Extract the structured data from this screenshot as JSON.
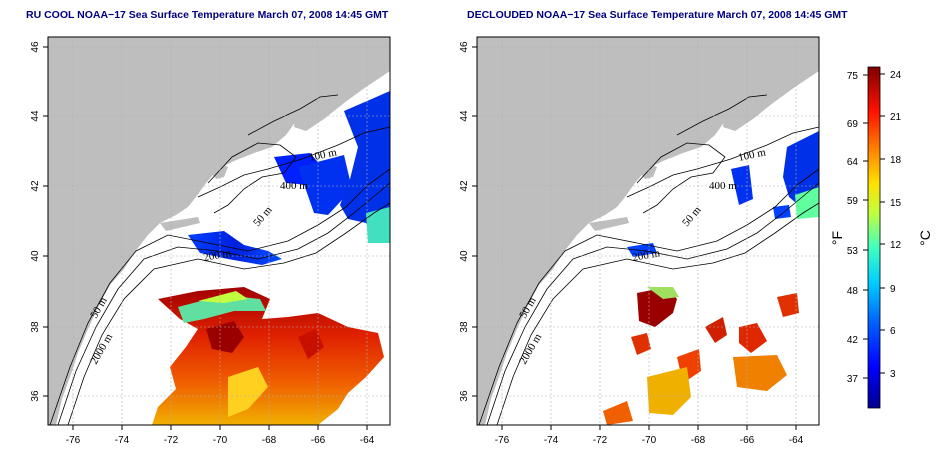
{
  "colors": {
    "land": "#BEBEBE",
    "ocean": "#FFFFFF",
    "contour": "#000000",
    "grid": "#B0B0B0",
    "title": "#000080",
    "colormap": [
      "#00008F",
      "#0000FF",
      "#0080FF",
      "#00FFFF",
      "#80FF80",
      "#FFFF00",
      "#FF8000",
      "#FF0000",
      "#800000"
    ]
  },
  "panels": [
    {
      "title": "RU COOL NOAA−17 Sea Surface Temperature March 07, 2008 14:45 GMT",
      "x_ticks": [
        "-76",
        "-74",
        "-72",
        "-70",
        "-68",
        "-66",
        "-64"
      ],
      "y_ticks": [
        "36",
        "38",
        "40",
        "42",
        "44",
        "46"
      ],
      "contour_labels": [
        "100 m",
        "400 m",
        "50 m",
        "200 m",
        "50 m",
        "2000 m"
      ]
    },
    {
      "title": "DECLOUDED NOAA−17 Sea Surface Temperature March 07, 2008 14:45 GMT",
      "x_ticks": [
        "-76",
        "-74",
        "-72",
        "-70",
        "-68",
        "-66",
        "-64"
      ],
      "y_ticks": [
        "36",
        "38",
        "40",
        "42",
        "44",
        "46"
      ],
      "contour_labels": [
        "100 m",
        "400 m",
        "50 m",
        "200 m",
        "50 m",
        "2000 m"
      ]
    }
  ],
  "colorbar": {
    "fahrenheit_ticks": [
      "75",
      "69",
      "64",
      "59",
      "53",
      "48",
      "42",
      "37"
    ],
    "celsius_ticks": [
      "24",
      "21",
      "18",
      "15",
      "12",
      "9",
      "6",
      "3"
    ],
    "fahrenheit_unit": "°F",
    "celsius_unit": "°C"
  }
}
